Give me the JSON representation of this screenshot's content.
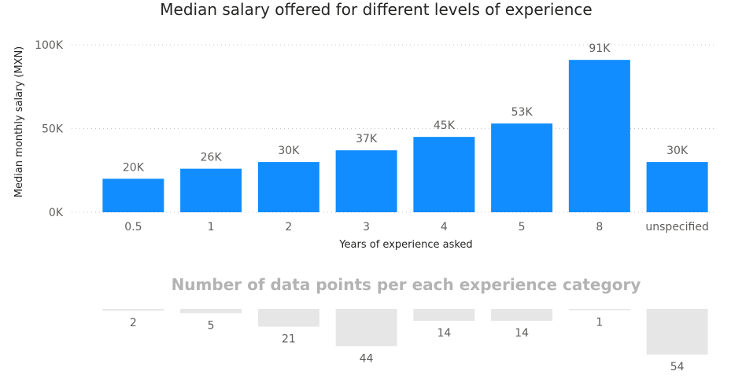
{
  "colors": {
    "bar": "#118dff",
    "count_bar": "#e6e6e6",
    "grid": "#c8c6c4"
  },
  "chart_data": [
    {
      "type": "bar",
      "title": "Median salary offered for different levels of experience",
      "xlabel": "Years of experience asked",
      "ylabel": "Median monthly salary (MXN)",
      "ylim": [
        0,
        100000
      ],
      "yticks": [
        {
          "value": 0,
          "label": "0K"
        },
        {
          "value": 50000,
          "label": "50K"
        },
        {
          "value": 100000,
          "label": "100K"
        }
      ],
      "grid": true,
      "categories": [
        "0.5",
        "1",
        "2",
        "3",
        "4",
        "5",
        "8",
        "unspecified"
      ],
      "values": [
        20000,
        26000,
        30000,
        37000,
        45000,
        53000,
        91000,
        30000
      ],
      "data_labels": [
        "20K",
        "26K",
        "30K",
        "37K",
        "45K",
        "53K",
        "91K",
        "30K"
      ]
    },
    {
      "type": "bar",
      "title": "Number of data points per each experience category",
      "orientation": "downward",
      "categories": [
        "0.5",
        "1",
        "2",
        "3",
        "4",
        "5",
        "8",
        "unspecified"
      ],
      "values": [
        2,
        5,
        21,
        44,
        14,
        14,
        1,
        54
      ],
      "data_labels": [
        "2",
        "5",
        "21",
        "44",
        "14",
        "14",
        "1",
        "54"
      ]
    }
  ]
}
